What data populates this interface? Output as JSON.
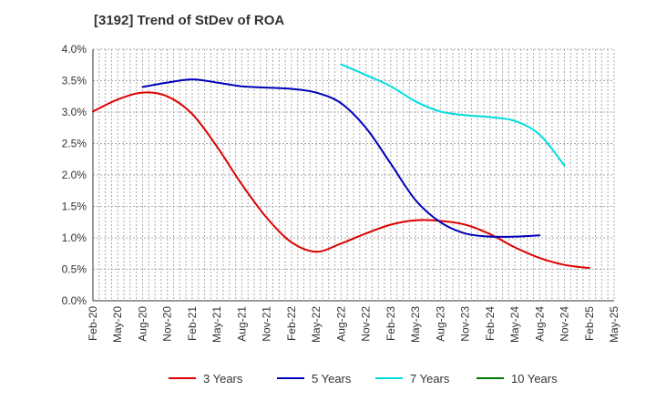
{
  "chart_data": {
    "type": "line",
    "title": "[3192]  Trend of StDev of ROA",
    "xlabel": "",
    "ylabel": "",
    "ylim": [
      0,
      4.0
    ],
    "y_ticks": [
      "0.0%",
      "0.5%",
      "1.0%",
      "1.5%",
      "2.0%",
      "2.5%",
      "3.0%",
      "3.5%",
      "4.0%"
    ],
    "x_ticks": [
      "Feb-20",
      "May-20",
      "Aug-20",
      "Nov-20",
      "Feb-21",
      "May-21",
      "Aug-21",
      "Nov-21",
      "Feb-22",
      "May-22",
      "Aug-22",
      "Nov-22",
      "Feb-23",
      "May-23",
      "Aug-23",
      "Nov-23",
      "Feb-24",
      "May-24",
      "Aug-24",
      "Nov-24",
      "Feb-25",
      "May-25"
    ],
    "grid": true,
    "legend_position": "bottom",
    "series": [
      {
        "name": "3 Years",
        "color": "#dd0000",
        "start_index": 0,
        "values": [
          3.01,
          3.2,
          3.31,
          3.25,
          2.97,
          2.45,
          1.85,
          1.32,
          0.93,
          0.78,
          0.91,
          1.07,
          1.21,
          1.28,
          1.27,
          1.21,
          1.06,
          0.85,
          0.68,
          0.57,
          0.52
        ]
      },
      {
        "name": "5 Years",
        "color": "#0000bb",
        "start_index": 2,
        "values": [
          3.4,
          3.47,
          3.52,
          3.47,
          3.41,
          3.39,
          3.37,
          3.31,
          3.14,
          2.75,
          2.18,
          1.6,
          1.25,
          1.07,
          1.02,
          1.02,
          1.04
        ]
      },
      {
        "name": "7 Years",
        "color": "#00dddd",
        "start_index": 10,
        "values": [
          3.76,
          3.59,
          3.41,
          3.17,
          3.01,
          2.95,
          2.92,
          2.86,
          2.64,
          2.15
        ]
      },
      {
        "name": "10 Years",
        "color": "#007700",
        "start_index": 0,
        "values": []
      }
    ]
  }
}
